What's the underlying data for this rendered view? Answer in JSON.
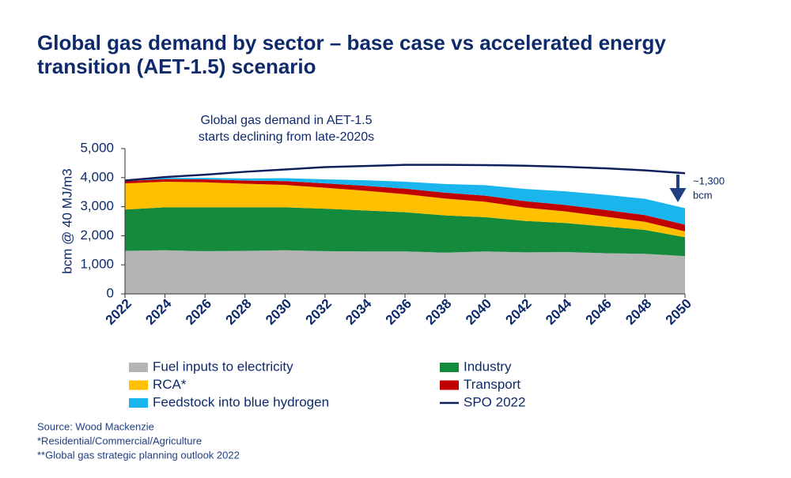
{
  "title": "Global gas demand by sector – base case vs accelerated energy transition (AET-1.5) scenario",
  "chart_data": {
    "type": "stacked-area",
    "annotation": [
      "Global gas demand in AET-1.5",
      "starts declining from late-2020s"
    ],
    "end_note": [
      "~1,300",
      "bcm"
    ],
    "ylabel": "bcm @ 40 MJ/m3",
    "x": [
      2022,
      2024,
      2026,
      2028,
      2030,
      2032,
      2034,
      2036,
      2038,
      2040,
      2042,
      2044,
      2046,
      2048,
      2050
    ],
    "xlim": [
      2022,
      2050
    ],
    "xticks": [
      2022,
      2024,
      2026,
      2028,
      2030,
      2032,
      2034,
      2036,
      2038,
      2040,
      2042,
      2044,
      2046,
      2048,
      2050
    ],
    "ylim": [
      0,
      5000
    ],
    "yticks": [
      0,
      {
        "value": 1000,
        "label": "1,000"
      },
      {
        "value": 2000,
        "label": "2,000"
      },
      {
        "value": 3000,
        "label": "3,000"
      },
      {
        "value": 4000,
        "label": "4,000"
      },
      {
        "value": 5000,
        "label": "5,000"
      }
    ],
    "series": [
      {
        "name": "Fuel inputs to electricity",
        "color": "#b4b4b4",
        "values": [
          1480,
          1500,
          1470,
          1480,
          1500,
          1470,
          1460,
          1460,
          1420,
          1460,
          1430,
          1440,
          1400,
          1380,
          1300
        ]
      },
      {
        "name": "Industry",
        "color": "#138a3c",
        "values": [
          1420,
          1480,
          1510,
          1500,
          1480,
          1460,
          1410,
          1350,
          1280,
          1180,
          1080,
          1000,
          920,
          820,
          650
        ]
      },
      {
        "name": "RCA*",
        "color": "#ffc000",
        "values": [
          900,
          880,
          860,
          810,
          770,
          720,
          680,
          620,
          580,
          530,
          460,
          400,
          340,
          280,
          200
        ]
      },
      {
        "name": "Transport",
        "color": "#c00000",
        "values": [
          80,
          90,
          100,
          110,
          130,
          150,
          170,
          190,
          200,
          210,
          220,
          220,
          230,
          230,
          230
        ]
      },
      {
        "name": "Feedstock into blue hydrogen",
        "color": "#1bb5ee",
        "values": [
          30,
          40,
          50,
          70,
          100,
          140,
          190,
          240,
          300,
          360,
          420,
          470,
          520,
          560,
          570
        ]
      },
      {
        "name": "SPO 2022",
        "color": "#0e1f5c",
        "type": "line",
        "values": [
          3900,
          4020,
          4100,
          4200,
          4280,
          4360,
          4400,
          4440,
          4440,
          4430,
          4410,
          4370,
          4320,
          4250,
          4150
        ]
      }
    ]
  },
  "footnotes": [
    "Source: Wood Mackenzie",
    "*Residential/Commercial/Agriculture",
    "**Global gas strategic planning outlook 2022"
  ]
}
